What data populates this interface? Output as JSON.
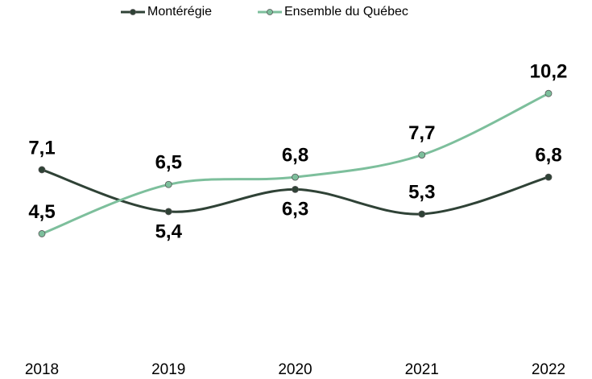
{
  "chart_data": {
    "type": "line",
    "categories": [
      "2018",
      "2019",
      "2020",
      "2021",
      "2022"
    ],
    "series": [
      {
        "name": "Montérégie",
        "color": "#2f4236",
        "values": [
          7.1,
          5.4,
          6.3,
          5.3,
          6.8
        ],
        "value_labels": [
          "7,1",
          "5,4",
          "6,3",
          "5,3",
          "6,8"
        ]
      },
      {
        "name": "Ensemble du Québec",
        "color": "#7dbf9c",
        "values": [
          4.5,
          6.5,
          6.8,
          7.7,
          10.2
        ],
        "value_labels": [
          "4,5",
          "6,5",
          "6,8",
          "7,7",
          "10,2"
        ]
      }
    ],
    "ylim": [
      0,
      14
    ]
  }
}
